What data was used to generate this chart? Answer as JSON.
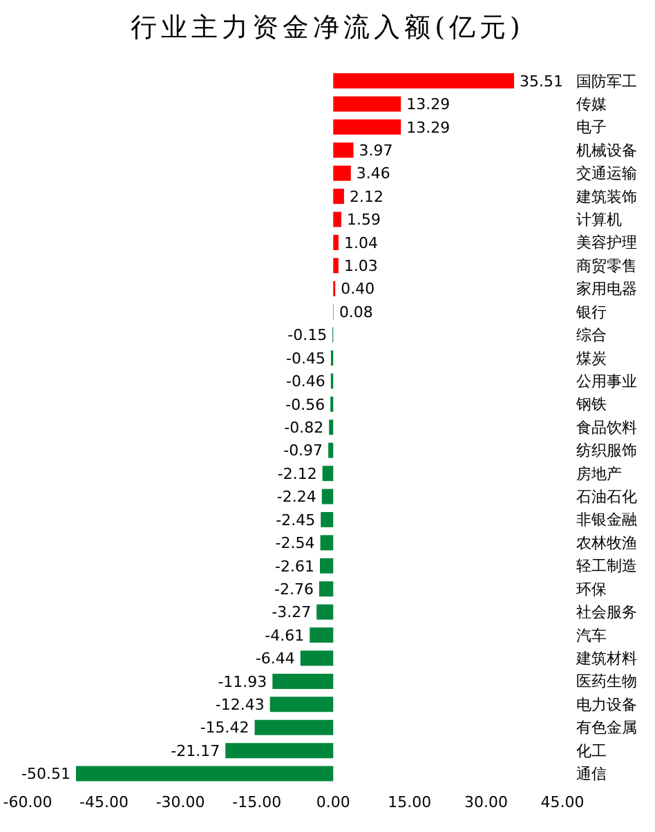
{
  "chart_data": {
    "type": "bar",
    "orientation": "horizontal",
    "title": "行业主力资金净流入额(亿元)",
    "categories": [
      "国防军工",
      "传媒",
      "电子",
      "机械设备",
      "交通运输",
      "建筑装饰",
      "计算机",
      "美容护理",
      "商贸零售",
      "家用电器",
      "银行",
      "综合",
      "煤炭",
      "公用事业",
      "钢铁",
      "食品饮料",
      "纺织服饰",
      "房地产",
      "石油石化",
      "非银金融",
      "农林牧渔",
      "轻工制造",
      "环保",
      "社会服务",
      "汽车",
      "建筑材料",
      "医药生物",
      "电力设备",
      "有色金属",
      "化工",
      "通信"
    ],
    "values": [
      35.51,
      13.29,
      13.29,
      3.97,
      3.46,
      2.12,
      1.59,
      1.04,
      1.03,
      0.4,
      0.08,
      -0.15,
      -0.45,
      -0.46,
      -0.56,
      -0.82,
      -0.97,
      -2.12,
      -2.24,
      -2.45,
      -2.54,
      -2.61,
      -2.76,
      -3.27,
      -4.61,
      -6.44,
      -11.93,
      -12.43,
      -15.42,
      -21.17,
      -50.51
    ],
    "value_labels": [
      "35.51",
      "13.29",
      "13.29",
      "3.97",
      "3.46",
      "2.12",
      "1.59",
      "1.04",
      "1.03",
      "0.40",
      "0.08",
      "-0.15",
      "-0.45",
      "-0.46",
      "-0.56",
      "-0.82",
      "-0.97",
      "-2.12",
      "-2.24",
      "-2.45",
      "-2.54",
      "-2.61",
      "-2.76",
      "-3.27",
      "-4.61",
      "-6.44",
      "-11.93",
      "-12.43",
      "-15.42",
      "-21.17",
      "-50.51"
    ],
    "colors": [
      "#ff0000",
      "#ff0000",
      "#ff0000",
      "#ff0000",
      "#ff0000",
      "#ff0000",
      "#ff0000",
      "#ff0000",
      "#ff0000",
      "#ff0000",
      "#ff0000",
      "#00873c",
      "#00873c",
      "#00873c",
      "#00873c",
      "#00873c",
      "#00873c",
      "#00873c",
      "#00873c",
      "#00873c",
      "#00873c",
      "#00873c",
      "#00873c",
      "#00873c",
      "#00873c",
      "#00873c",
      "#00873c",
      "#00873c",
      "#00873c",
      "#00873c",
      "#00873c"
    ],
    "xlim": [
      -60,
      45
    ],
    "xticks": [
      {
        "value": -60,
        "label": "-60.00"
      },
      {
        "value": -45,
        "label": "-45.00"
      },
      {
        "value": -30,
        "label": "-30.00"
      },
      {
        "value": -15,
        "label": "-15.00"
      },
      {
        "value": 0,
        "label": "0.00"
      },
      {
        "value": 15,
        "label": "15.00"
      },
      {
        "value": 30,
        "label": "30.00"
      },
      {
        "value": 45,
        "label": "45.00"
      }
    ],
    "grid": false,
    "legend": false
  }
}
